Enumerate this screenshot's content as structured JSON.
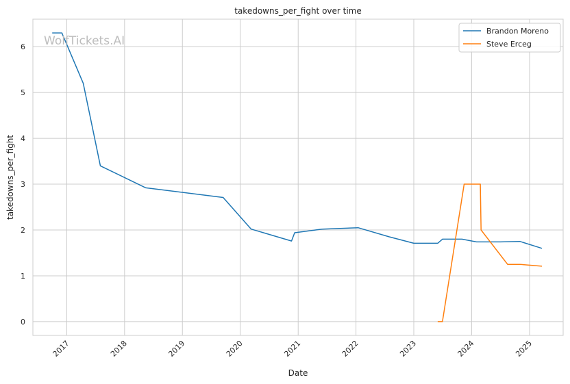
{
  "chart_data": {
    "type": "line",
    "title": "takedowns_per_fight over time",
    "xlabel": "Date",
    "ylabel": "takedowns_per_fight",
    "xlim": [
      "2016-06-01",
      "2025-08-01"
    ],
    "ylim": [
      -0.3,
      6.6
    ],
    "x_ticks": [
      "2017",
      "2018",
      "2019",
      "2020",
      "2021",
      "2022",
      "2023",
      "2024",
      "2025"
    ],
    "y_ticks": [
      0,
      1,
      2,
      3,
      4,
      5,
      6
    ],
    "grid": true,
    "legend_position": "top-right",
    "watermark": "WolfTickets.AI",
    "series": [
      {
        "name": "Brandon Moreno",
        "color": "#1f77b4",
        "points": [
          [
            "2016-10-01",
            6.3
          ],
          [
            "2016-12-01",
            6.3
          ],
          [
            "2017-04-15",
            5.2
          ],
          [
            "2017-08-01",
            3.4
          ],
          [
            "2018-05-15",
            2.92
          ],
          [
            "2019-09-15",
            2.71
          ],
          [
            "2020-03-10",
            2.02
          ],
          [
            "2020-11-20",
            1.76
          ],
          [
            "2020-12-10",
            1.94
          ],
          [
            "2021-06-01",
            2.02
          ],
          [
            "2022-01-15",
            2.05
          ],
          [
            "2022-07-30",
            1.85
          ],
          [
            "2023-01-01",
            1.71
          ],
          [
            "2023-06-01",
            1.71
          ],
          [
            "2023-07-01",
            1.8
          ],
          [
            "2023-11-01",
            1.8
          ],
          [
            "2024-02-01",
            1.74
          ],
          [
            "2024-07-01",
            1.74
          ],
          [
            "2024-11-01",
            1.75
          ],
          [
            "2025-03-20",
            1.6
          ]
        ]
      },
      {
        "name": "Steve Erceg",
        "color": "#ff7f0e",
        "points": [
          [
            "2023-06-01",
            0.0
          ],
          [
            "2023-07-01",
            0.0
          ],
          [
            "2023-11-15",
            3.0
          ],
          [
            "2024-02-25",
            3.0
          ],
          [
            "2024-03-01",
            2.0
          ],
          [
            "2024-08-15",
            1.25
          ],
          [
            "2024-11-01",
            1.25
          ],
          [
            "2025-03-20",
            1.21
          ]
        ]
      }
    ]
  }
}
